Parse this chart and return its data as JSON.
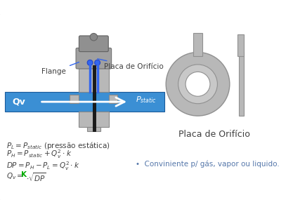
{
  "bg_color": "#ffffff",
  "border_color": "#aaaaaa",
  "pipe_color": "#3b8fd4",
  "flange_color": "#b8b8b8",
  "sensor_color": "#a0a0a0",
  "text_color": "#404040",
  "K_color": "#00aa00",
  "bullet_color": "#5577aa",
  "blue_tube_color": "#3366ee",
  "plate_color": "#1a1a1a",
  "label_flange": "Flange",
  "label_placa_top": "Placa de Orifício",
  "label_qv": "Qv",
  "label_pstatic": "P",
  "label_pstatic_sub": "static",
  "placa_label": "Placa de Orifício",
  "bullet": "Conviniente p/ gás, vapor ou liquido."
}
